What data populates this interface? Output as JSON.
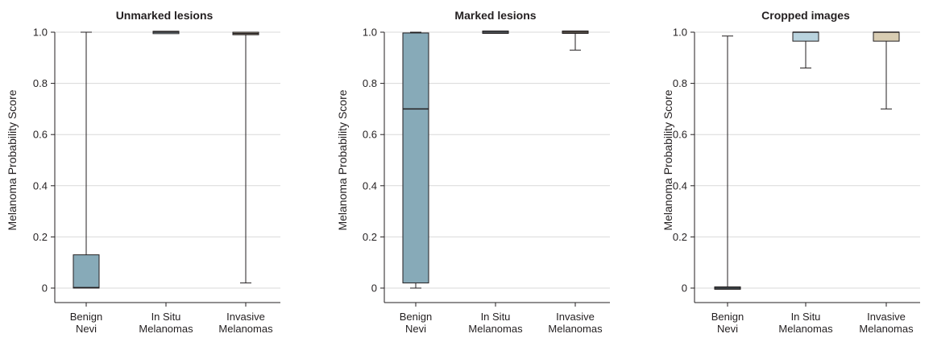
{
  "chart_data": [
    {
      "type": "box",
      "title": "Unmarked lesions",
      "ylabel": "Melanoma Probability Score",
      "ylim": [
        0,
        1
      ],
      "yticks": [
        "0",
        "0.2",
        "0.4",
        "0.6",
        "0.8",
        "1.0"
      ],
      "grid": true,
      "categories": [
        [
          "Benign",
          "Nevi"
        ],
        [
          "In Situ",
          "Melanomas"
        ],
        [
          "Invasive",
          "Melanomas"
        ]
      ],
      "boxes": [
        {
          "min": 0.0,
          "q1": 0.0,
          "median": 0.002,
          "q3": 0.13,
          "max": 1.0,
          "color": "#87aab8"
        },
        {
          "min": 0.998,
          "q1": 0.998,
          "median": 1.0,
          "q3": 1.0,
          "max": 1.0,
          "color": "#b9d3de"
        },
        {
          "min": 0.02,
          "q1": 0.99,
          "median": 0.995,
          "q3": 1.0,
          "max": 1.0,
          "color": "#d8ccb2"
        }
      ]
    },
    {
      "type": "box",
      "title": "Marked lesions",
      "ylabel": "Melanoma Probability Score",
      "ylim": [
        0,
        1
      ],
      "yticks": [
        "0",
        "0.2",
        "0.4",
        "0.6",
        "0.8",
        "1.0"
      ],
      "grid": true,
      "categories": [
        [
          "Benign",
          "Nevi"
        ],
        [
          "In Situ",
          "Melanomas"
        ],
        [
          "Invasive",
          "Melanomas"
        ]
      ],
      "boxes": [
        {
          "min": 0.0,
          "q1": 0.02,
          "median": 0.7,
          "q3": 0.997,
          "max": 1.0,
          "color": "#87aab8"
        },
        {
          "min": 1.0,
          "q1": 1.0,
          "median": 1.0,
          "q3": 1.0,
          "max": 1.0,
          "color": "#b9d3de"
        },
        {
          "min": 0.93,
          "q1": 1.0,
          "median": 1.0,
          "q3": 1.0,
          "max": 1.0,
          "color": "#d8ccb2"
        }
      ]
    },
    {
      "type": "box",
      "title": "Cropped images",
      "ylabel": "Melanoma Probability Score",
      "ylim": [
        0,
        1
      ],
      "yticks": [
        "0",
        "0.2",
        "0.4",
        "0.6",
        "0.8",
        "1.0"
      ],
      "grid": true,
      "categories": [
        [
          "Benign",
          "Nevi"
        ],
        [
          "In Situ",
          "Melanomas"
        ],
        [
          "Invasive",
          "Melanomas"
        ]
      ],
      "boxes": [
        {
          "min": 0.0,
          "q1": 0.0,
          "median": 0.0,
          "q3": 0.0,
          "max": 0.985,
          "color": "#87aab8"
        },
        {
          "min": 0.86,
          "q1": 0.965,
          "median": 1.0,
          "q3": 1.0,
          "max": 1.0,
          "color": "#b9d3de"
        },
        {
          "min": 0.7,
          "q1": 0.965,
          "median": 1.0,
          "q3": 1.0,
          "max": 1.0,
          "color": "#d8ccb2"
        }
      ]
    }
  ]
}
